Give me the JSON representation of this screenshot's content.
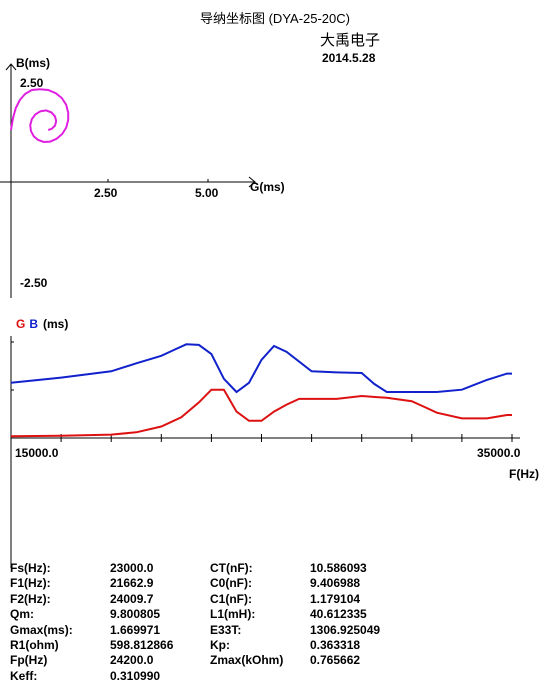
{
  "header": {
    "title": "导纳坐标图 (DYA-25-20C)",
    "company": "大禹电子",
    "date": "2014.5.28"
  },
  "chart_data": [
    {
      "type": "scatter",
      "ylabel": "B(ms)",
      "xlabel": "G(ms)",
      "x_ticks": [
        "2.50",
        "5.00"
      ],
      "y_ticks": [
        "2.50",
        "-2.50"
      ],
      "xlim": [
        -0.7,
        7.0
      ],
      "ylim": [
        -2.9,
        3.0
      ],
      "color": "#e020e0",
      "points": [
        [
          0.0,
          1.3
        ],
        [
          0.05,
          1.6
        ],
        [
          0.12,
          1.85
        ],
        [
          0.22,
          2.05
        ],
        [
          0.35,
          2.2
        ],
        [
          0.52,
          2.3
        ],
        [
          0.72,
          2.32
        ],
        [
          0.93,
          2.3
        ],
        [
          1.12,
          2.22
        ],
        [
          1.27,
          2.1
        ],
        [
          1.38,
          1.93
        ],
        [
          1.43,
          1.73
        ],
        [
          1.43,
          1.55
        ],
        [
          1.38,
          1.36
        ],
        [
          1.28,
          1.2
        ],
        [
          1.14,
          1.08
        ],
        [
          0.98,
          1.01
        ],
        [
          0.82,
          1.0
        ],
        [
          0.68,
          1.05
        ],
        [
          0.57,
          1.14
        ],
        [
          0.5,
          1.27
        ],
        [
          0.48,
          1.42
        ],
        [
          0.52,
          1.57
        ],
        [
          0.61,
          1.69
        ],
        [
          0.74,
          1.77
        ],
        [
          0.88,
          1.79
        ],
        [
          1.01,
          1.74
        ],
        [
          1.1,
          1.64
        ],
        [
          1.13,
          1.52
        ],
        [
          1.1,
          1.41
        ],
        [
          1.02,
          1.33
        ],
        [
          0.93,
          1.3
        ]
      ]
    },
    {
      "type": "line",
      "ylabel_parts": [
        "G",
        "B",
        "(ms)"
      ],
      "xlabel": "F(Hz)",
      "x_tick_labels": [
        "15000.0",
        "35000.0"
      ],
      "xlim": [
        15000,
        35000
      ],
      "ylim": [
        0,
        1.8
      ],
      "series": [
        {
          "name": "G",
          "color": "#dd1111",
          "x": [
            15000,
            17000,
            19000,
            20000,
            21000,
            21800,
            22500,
            23000,
            23500,
            24000,
            24500,
            25000,
            25500,
            26000,
            26500,
            27000,
            28000,
            29000,
            30000,
            31000,
            31500,
            32000,
            33000,
            34000,
            34800,
            35000
          ],
          "y": [
            0.03,
            0.04,
            0.06,
            0.1,
            0.2,
            0.36,
            0.62,
            0.84,
            0.84,
            0.46,
            0.3,
            0.3,
            0.46,
            0.58,
            0.68,
            0.68,
            0.68,
            0.73,
            0.7,
            0.64,
            0.54,
            0.44,
            0.34,
            0.34,
            0.4,
            0.4
          ]
        },
        {
          "name": "B",
          "color": "#1122cc",
          "x": [
            15000,
            17000,
            19000,
            20000,
            21000,
            21500,
            22000,
            22500,
            23000,
            23500,
            24000,
            24500,
            25000,
            25500,
            26000,
            27000,
            28000,
            29000,
            29500,
            30000,
            31000,
            32000,
            33000,
            34000,
            34800,
            35000
          ],
          "y": [
            0.96,
            1.05,
            1.16,
            1.3,
            1.43,
            1.53,
            1.63,
            1.62,
            1.46,
            1.03,
            0.8,
            0.96,
            1.36,
            1.6,
            1.5,
            1.16,
            1.14,
            1.13,
            0.94,
            0.8,
            0.8,
            0.8,
            0.84,
            1.01,
            1.12,
            1.12
          ]
        }
      ]
    }
  ],
  "params": [
    {
      "l1": "Fs(Hz):",
      "v1": "23000.0",
      "l2": "CT(nF):",
      "v2": "10.586093"
    },
    {
      "l1": "F1(Hz):",
      "v1": "21662.9",
      "l2": "C0(nF):",
      "v2": "9.406988"
    },
    {
      "l1": "F2(Hz):",
      "v1": "24009.7",
      "l2": "C1(nF):",
      "v2": "1.179104"
    },
    {
      "l1": "Qm:",
      "v1": "9.800805",
      "l2": "L1(mH):",
      "v2": "40.612335"
    },
    {
      "l1": "Gmax(ms):",
      "v1": "1.669971",
      "l2": "E33T:",
      "v2": "1306.925049"
    },
    {
      "l1": "R1(ohm)",
      "v1": "598.812866",
      "l2": "Kp:",
      "v2": "0.363318"
    },
    {
      "l1": "Fp(Hz)",
      "v1": "24200.0",
      "l2": "Zmax(kOhm)",
      "v2": "0.765662"
    },
    {
      "l1": "Keff:",
      "v1": "0.310990",
      "l2": "",
      "v2": ""
    }
  ]
}
